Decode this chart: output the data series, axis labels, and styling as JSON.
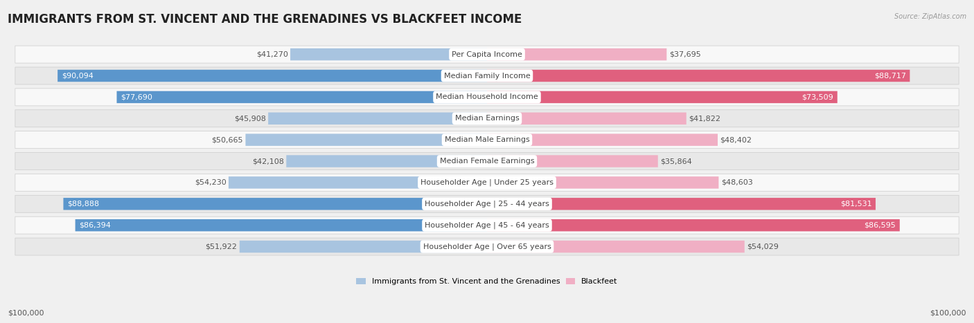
{
  "title": "IMMIGRANTS FROM ST. VINCENT AND THE GRENADINES VS BLACKFEET INCOME",
  "source": "Source: ZipAtlas.com",
  "categories": [
    "Per Capita Income",
    "Median Family Income",
    "Median Household Income",
    "Median Earnings",
    "Median Male Earnings",
    "Median Female Earnings",
    "Householder Age | Under 25 years",
    "Householder Age | 25 - 44 years",
    "Householder Age | 45 - 64 years",
    "Householder Age | Over 65 years"
  ],
  "left_values": [
    41270,
    90094,
    77690,
    45908,
    50665,
    42108,
    54230,
    88888,
    86394,
    51922
  ],
  "right_values": [
    37695,
    88717,
    73509,
    41822,
    48402,
    35864,
    48603,
    81531,
    86595,
    54029
  ],
  "left_labels": [
    "$41,270",
    "$90,094",
    "$77,690",
    "$45,908",
    "$50,665",
    "$42,108",
    "$54,230",
    "$88,888",
    "$86,394",
    "$51,922"
  ],
  "right_labels": [
    "$37,695",
    "$88,717",
    "$73,509",
    "$41,822",
    "$48,402",
    "$35,864",
    "$48,603",
    "$81,531",
    "$86,595",
    "$54,029"
  ],
  "max_value": 100000,
  "left_color_full": "#5b96cc",
  "left_color_light": "#a8c4e0",
  "right_color_full": "#e0607e",
  "right_color_light": "#f0afc4",
  "legend_left": "Immigrants from St. Vincent and the Grenadines",
  "legend_right": "Blackfeet",
  "bg_color": "#f0f0f0",
  "row_bg_light": "#f8f8f8",
  "row_bg_dark": "#e8e8e8",
  "text_dark": "#555555",
  "text_white": "#ffffff",
  "axis_label": "$100,000",
  "title_fontsize": 12,
  "label_fontsize": 8,
  "cat_fontsize": 8,
  "source_fontsize": 7
}
